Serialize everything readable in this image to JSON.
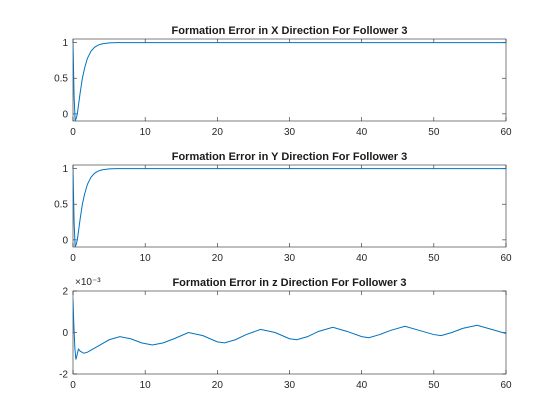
{
  "chart_data": [
    {
      "type": "line",
      "title": "Formation Error in X Direction For Follower 3",
      "xlabel": "",
      "ylabel": "",
      "xlim": [
        0,
        60
      ],
      "ylim": [
        -0.1,
        1.05
      ],
      "xticks": [
        0,
        10,
        20,
        30,
        40,
        50,
        60
      ],
      "xtick_labels": [
        "0",
        "10",
        "20",
        "30",
        "40",
        "50",
        "60"
      ],
      "yticks": [
        0,
        0.5,
        1
      ],
      "ytick_labels": [
        "0",
        "0.5",
        "1"
      ],
      "exponent_label": "",
      "grid": false,
      "series": [
        {
          "color": "#0072BD",
          "x": [
            0,
            0.15,
            0.3,
            0.45,
            0.6,
            0.8,
            1.0,
            1.3,
            1.6,
            2.0,
            2.5,
            3.0,
            3.5,
            4.0,
            5.0,
            6.0,
            7.0,
            8.0,
            10.0,
            15.0,
            20.0,
            30.0,
            40.0,
            50.0,
            60.0
          ],
          "y": [
            1.0,
            0.25,
            -0.1,
            -0.06,
            0.0,
            0.15,
            0.3,
            0.5,
            0.64,
            0.78,
            0.88,
            0.935,
            0.965,
            0.982,
            0.995,
            0.999,
            1.0,
            1.0,
            1.0,
            1.0,
            1.0,
            1.0,
            1.0,
            1.0,
            1.0
          ]
        }
      ]
    },
    {
      "type": "line",
      "title": "Formation Error in Y Direction For Follower 3",
      "xlabel": "",
      "ylabel": "",
      "xlim": [
        0,
        60
      ],
      "ylim": [
        -0.1,
        1.05
      ],
      "xticks": [
        0,
        10,
        20,
        30,
        40,
        50,
        60
      ],
      "xtick_labels": [
        "0",
        "10",
        "20",
        "30",
        "40",
        "50",
        "60"
      ],
      "yticks": [
        0,
        0.5,
        1
      ],
      "ytick_labels": [
        "0",
        "0.5",
        "1"
      ],
      "exponent_label": "",
      "grid": false,
      "series": [
        {
          "color": "#0072BD",
          "x": [
            0,
            0.15,
            0.3,
            0.45,
            0.6,
            0.8,
            1.0,
            1.3,
            1.6,
            2.0,
            2.5,
            3.0,
            3.5,
            4.0,
            5.0,
            6.0,
            7.0,
            8.0,
            10.0,
            15.0,
            20.0,
            30.0,
            40.0,
            50.0,
            60.0
          ],
          "y": [
            1.0,
            0.25,
            -0.1,
            -0.06,
            0.0,
            0.15,
            0.3,
            0.5,
            0.64,
            0.78,
            0.88,
            0.935,
            0.965,
            0.982,
            0.995,
            0.999,
            1.0,
            1.0,
            1.0,
            1.0,
            1.0,
            1.0,
            1.0,
            1.0,
            1.0
          ]
        }
      ]
    },
    {
      "type": "line",
      "title": "Formation Error in z Direction For Follower 3",
      "xlabel": "",
      "ylabel": "",
      "xlim": [
        0,
        60
      ],
      "ylim": [
        -2,
        2
      ],
      "xticks": [
        0,
        10,
        20,
        30,
        40,
        50,
        60
      ],
      "xtick_labels": [
        "0",
        "10",
        "20",
        "30",
        "40",
        "50",
        "60"
      ],
      "yticks": [
        -2,
        0,
        2
      ],
      "ytick_labels": [
        "-2",
        "0",
        "2"
      ],
      "exponent_label": "×10⁻³",
      "grid": false,
      "series": [
        {
          "color": "#0072BD",
          "x": [
            0,
            0.1,
            0.25,
            0.4,
            0.55,
            0.75,
            1.0,
            1.5,
            2.0,
            3.0,
            4.0,
            5.0,
            6.5,
            8.0,
            9.5,
            11.0,
            12.5,
            14.0,
            16.0,
            18.0,
            20.0,
            21.0,
            22.5,
            24.0,
            26.0,
            28.0,
            30.0,
            31.0,
            32.5,
            34.0,
            36.0,
            38.0,
            40.0,
            41.0,
            42.5,
            44.0,
            46.0,
            48.0,
            50.0,
            51.0,
            52.5,
            54.0,
            56.0,
            58.0,
            60.0
          ],
          "y": [
            1.6,
            0.5,
            -0.7,
            -1.3,
            -1.1,
            -0.8,
            -0.9,
            -1.0,
            -0.95,
            -0.75,
            -0.55,
            -0.35,
            -0.2,
            -0.3,
            -0.5,
            -0.6,
            -0.5,
            -0.3,
            0.0,
            -0.15,
            -0.45,
            -0.5,
            -0.35,
            -0.1,
            0.15,
            0.0,
            -0.3,
            -0.35,
            -0.2,
            0.05,
            0.25,
            0.05,
            -0.2,
            -0.25,
            -0.1,
            0.1,
            0.3,
            0.1,
            -0.1,
            -0.15,
            0.0,
            0.2,
            0.35,
            0.15,
            -0.05
          ]
        }
      ]
    }
  ]
}
